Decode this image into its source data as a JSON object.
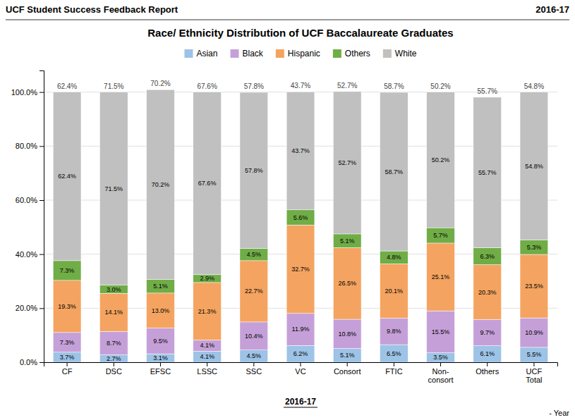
{
  "chart_data": {
    "type": "bar",
    "stacked": true,
    "title": "Race/ Ethnicity Distribution of UCF Baccalaureate Graduates",
    "xlabel": "2016-17",
    "categories": [
      "CF",
      "DSC",
      "EFSC",
      "LSSC",
      "SSC",
      "VC",
      "Consort",
      "FTIC",
      "Non-\nconsort",
      "Others",
      "UCF\nTotal"
    ],
    "series": [
      {
        "name": "Asian",
        "color": "#9DC3E6",
        "values": [
          3.7,
          2.7,
          3.1,
          4.1,
          4.5,
          6.2,
          5.1,
          6.5,
          3.5,
          6.1,
          5.5
        ],
        "value_labels": [
          "3.7%",
          "2.7%",
          "3.1%",
          "4.1%",
          "4.5%",
          "6.2%",
          "5.1%",
          "6.5%",
          "3.5%",
          "6.1%",
          "5.5%"
        ]
      },
      {
        "name": "Black",
        "color": "#C5A0D8",
        "values": [
          7.3,
          8.7,
          9.5,
          4.1,
          10.4,
          11.9,
          10.8,
          9.8,
          15.5,
          9.7,
          10.9
        ],
        "value_labels": [
          "7.3%",
          "8.7%",
          "9.5%",
          "4.1%",
          "10.4%",
          "11.9%",
          "10.8%",
          "9.8%",
          "15.5%",
          "9.7%",
          "10.9%"
        ]
      },
      {
        "name": "Hispanic",
        "color": "#F4A460",
        "values": [
          19.3,
          14.1,
          13.0,
          21.3,
          22.7,
          32.7,
          26.5,
          20.1,
          25.1,
          20.3,
          23.5
        ],
        "value_labels": [
          "19.3%",
          "14.1%",
          "13.0%",
          "21.3%",
          "22.7%",
          "32.7%",
          "26.5%",
          "20.1%",
          "25.1%",
          "20.3%",
          "23.5%"
        ]
      },
      {
        "name": "Others",
        "color": "#70AD47",
        "values": [
          7.3,
          3.0,
          5.1,
          2.9,
          4.5,
          5.6,
          5.1,
          4.8,
          5.7,
          6.3,
          5.3
        ],
        "value_labels": [
          "7.3%",
          "3.0%",
          "5.1%",
          "2.9%",
          "4.5%",
          "5.6%",
          "5.1%",
          "4.8%",
          "5.7%",
          "6.3%",
          "5.3%"
        ]
      },
      {
        "name": "White",
        "color": "#C0C0C0",
        "values": [
          62.4,
          71.5,
          70.2,
          67.6,
          57.8,
          43.7,
          52.7,
          58.7,
          50.2,
          55.7,
          54.8
        ],
        "value_labels": [
          "62.4%",
          "71.5%",
          "70.2%",
          "67.6%",
          "57.8%",
          "43.7%",
          "52.7%",
          "58.7%",
          "50.2%",
          "55.7%",
          "54.8%"
        ]
      }
    ],
    "data_labels": true,
    "ylim": [
      0,
      108
    ],
    "yticks": [
      {
        "value": 0,
        "label": "0.0%"
      },
      {
        "value": 20,
        "label": "20.0%"
      },
      {
        "value": 40,
        "label": "40.0%"
      },
      {
        "value": 60,
        "label": "60.0%"
      },
      {
        "value": 80,
        "label": "80.0%"
      },
      {
        "value": 100,
        "label": "100.0%"
      }
    ],
    "grid": true,
    "legend": "top",
    "annotations": [
      {
        "text": "UCF Student Success Feedback Report"
      },
      {
        "text": "2016-17"
      },
      {
        "text": "- Year"
      },
      {
        "text": "62.4%",
        "x": "CF"
      },
      {
        "text": "71.5%",
        "x": "DSC"
      },
      {
        "text": "70.2%",
        "x": "EFSC"
      },
      {
        "text": "67.6%",
        "x": "LSSC"
      },
      {
        "text": "57.8%",
        "x": "SSC"
      },
      {
        "text": "43.7%",
        "x": "VC"
      },
      {
        "text": "52.7%",
        "x": "Consort"
      },
      {
        "text": "58.7%",
        "x": "FTIC"
      },
      {
        "text": "50.2%",
        "x": "Non-\nconsort"
      },
      {
        "text": "55.7%",
        "x": "Others"
      },
      {
        "text": "54.8%",
        "x": "UCF\nTotal"
      }
    ]
  }
}
